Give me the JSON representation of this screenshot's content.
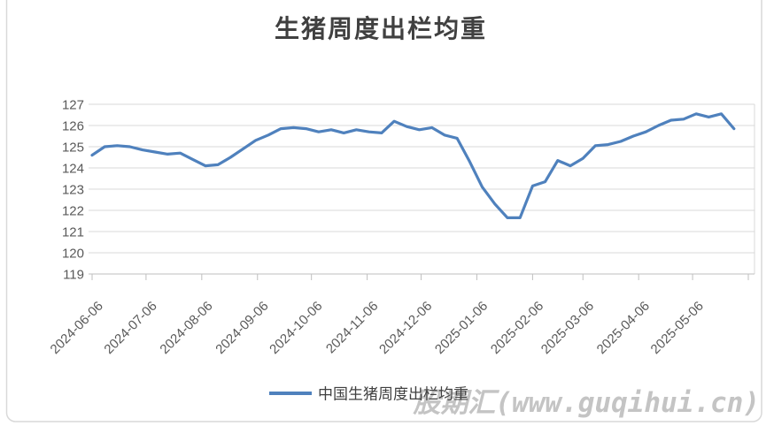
{
  "title": "生猪周度出栏均重",
  "legend": {
    "label": "中国生猪周度出栏均重"
  },
  "watermark": "股期汇(www.guqihui.cn)",
  "colors": {
    "line": "#4F81BD",
    "grid": "#D9D9D9",
    "axis": "#BFBFBF",
    "tick_label": "#595959",
    "title": "#404040",
    "watermark": "#C4C4C4"
  },
  "chart_data": {
    "type": "line",
    "title": "生猪周度出栏均重",
    "series_name": "中国生猪周度出栏均重",
    "x": [
      "2024-06-06",
      "2024-06-13",
      "2024-06-20",
      "2024-06-27",
      "2024-07-04",
      "2024-07-11",
      "2024-07-18",
      "2024-07-25",
      "2024-08-01",
      "2024-08-08",
      "2024-08-15",
      "2024-08-22",
      "2024-08-29",
      "2024-09-05",
      "2024-09-12",
      "2024-09-19",
      "2024-09-26",
      "2024-10-03",
      "2024-10-10",
      "2024-10-17",
      "2024-10-24",
      "2024-10-31",
      "2024-11-07",
      "2024-11-14",
      "2024-11-21",
      "2024-11-28",
      "2024-12-05",
      "2024-12-12",
      "2024-12-19",
      "2024-12-26",
      "2025-01-02",
      "2025-01-09",
      "2025-01-16",
      "2025-01-23",
      "2025-01-30",
      "2025-02-06",
      "2025-02-13",
      "2025-02-20",
      "2025-02-27",
      "2025-03-06",
      "2025-03-13",
      "2025-03-20",
      "2025-03-27",
      "2025-04-03",
      "2025-04-10",
      "2025-04-17",
      "2025-04-24",
      "2025-05-01",
      "2025-05-08",
      "2025-05-15",
      "2025-05-22",
      "2025-05-29"
    ],
    "values": [
      124.6,
      125.0,
      125.05,
      125.0,
      124.85,
      124.75,
      124.65,
      124.7,
      124.4,
      124.1,
      124.15,
      124.5,
      124.9,
      125.3,
      125.55,
      125.85,
      125.9,
      125.85,
      125.7,
      125.8,
      125.65,
      125.8,
      125.7,
      125.65,
      126.2,
      125.95,
      125.8,
      125.9,
      125.55,
      125.4,
      124.3,
      123.1,
      122.3,
      121.65,
      121.65,
      123.15,
      123.35,
      124.35,
      124.1,
      124.45,
      125.05,
      125.1,
      125.25,
      125.5,
      125.7,
      126.0,
      126.25,
      126.3,
      126.55,
      126.4,
      126.55,
      125.85
    ],
    "xtick_labels": [
      "2024-06-06",
      "2024-07-06",
      "2024-08-06",
      "2024-09-06",
      "2024-10-06",
      "2024-11-06",
      "2024-12-06",
      "2025-01-06",
      "2025-02-06",
      "2025-03-06",
      "2025-04-06",
      "2025-05-06"
    ],
    "axis_end_tick": "2025-06-06",
    "ylim": [
      119,
      127
    ],
    "ytick_interval": 1,
    "xlabel": "",
    "ylabel": "",
    "grid": "horizontal",
    "legend_position": "bottom",
    "line_color": "#4F81BD"
  }
}
